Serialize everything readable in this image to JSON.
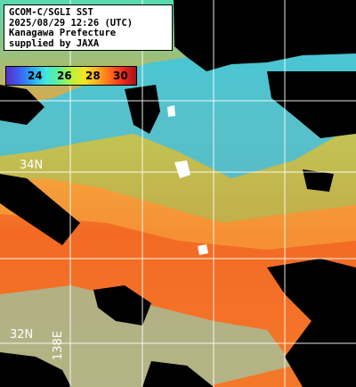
{
  "header": {
    "line1": "GCOM-C/SGLI SST",
    "line2": "2025/08/29 12:26 (UTC)",
    "line3": "Kanagawa Prefecture",
    "line4": "supplied by JAXA"
  },
  "legend": {
    "ticks": [
      "24",
      "26",
      "28",
      "30"
    ],
    "colors": [
      "#5a2ec2",
      "#3d5ff0",
      "#2aa7f5",
      "#3fe6e0",
      "#5ff09a",
      "#b7f23d",
      "#f4e624",
      "#ffb01e",
      "#ff6a1a",
      "#f0281c",
      "#a4121a"
    ]
  },
  "grid": {
    "lat_label_top": "34N",
    "lat_label_bottom": "32N",
    "lon_label": "138E"
  },
  "palette": {
    "land_cloud": "#000000",
    "grid_line": "#ffffff",
    "sea_warm": "#f36a24",
    "sea_cool": "#3cc7e4"
  }
}
